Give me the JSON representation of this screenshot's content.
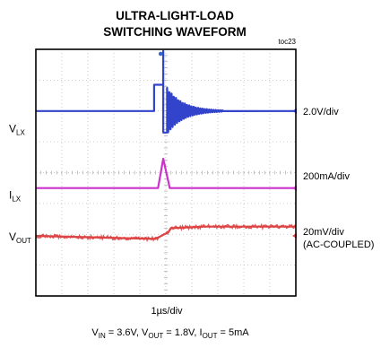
{
  "chart_data": {
    "type": "line",
    "title": [
      "ULTRA-LIGHT-LOAD",
      "SWITCHING WAVEFORM"
    ],
    "figure_id": "toc23",
    "xlabel": "1µs/div",
    "conditions": {
      "main": "V_IN = 3.6V, V_OUT = 1.8V, I_OUT = 5mA",
      "parts": [
        {
          "base": "V",
          "sub": "IN",
          "tail": " = 3.6V, "
        },
        {
          "base": "V",
          "sub": "OUT",
          "tail": " = 1.8V, "
        },
        {
          "base": "I",
          "sub": "OUT",
          "tail": " = 5mA"
        }
      ]
    },
    "grid": {
      "divisions_x": 10,
      "divisions_y": 8,
      "style": "dotted"
    },
    "channels": [
      {
        "name": "V_LX",
        "label_base": "V",
        "label_sub": "LX",
        "scale": "2.0V/div",
        "color": "#3344cc",
        "baseline_div": 6.0,
        "label_div": 5.45,
        "scale_div": 6.0,
        "points": [
          [
            0,
            0
          ],
          [
            4.55,
            0
          ],
          [
            4.55,
            0.85
          ],
          [
            4.9,
            0.85
          ],
          [
            4.9,
            1.95
          ],
          [
            4.9,
            -0.7
          ],
          [
            5.05,
            -0.7
          ],
          [
            5.05,
            0
          ]
        ],
        "ringing": {
          "start": 5.05,
          "end": 7.2,
          "amp": 0.75,
          "period": 0.085,
          "decay": 0.6
        }
      },
      {
        "name": "I_LX",
        "label_base": "I",
        "label_sub": "LX",
        "scale": "200mA/div",
        "color": "#cc33cc",
        "baseline_div": 3.5,
        "label_div": 3.3,
        "scale_div": 3.9,
        "points": [
          [
            0,
            0
          ],
          [
            4.7,
            0
          ],
          [
            4.9,
            0.95
          ],
          [
            5.15,
            0
          ],
          [
            10,
            0
          ]
        ]
      },
      {
        "name": "V_OUT",
        "label_base": "V",
        "label_sub": "OUT",
        "scale": "20mV/div",
        "scale_note": "(AC-COUPLED)",
        "color": "#dd4444",
        "baseline_div": 1.95,
        "label_div": 1.95,
        "scale_div": 2.1,
        "points": [
          [
            0,
            0
          ],
          [
            4.6,
            -0.1
          ],
          [
            5.1,
            0.12
          ],
          [
            5.2,
            0.25
          ],
          [
            6.5,
            0.3
          ],
          [
            10,
            0.3
          ]
        ]
      }
    ],
    "marker_label": "o"
  }
}
